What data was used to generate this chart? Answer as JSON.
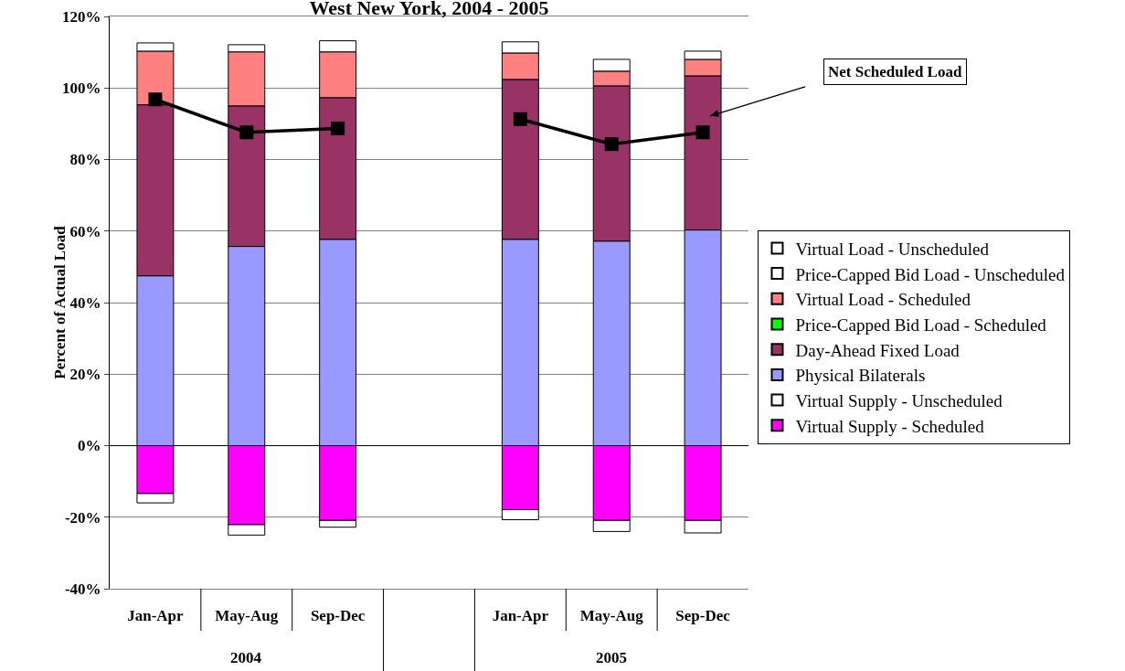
{
  "chart_data": {
    "type": "bar",
    "title": "West New York, 2004 - 2005",
    "ylabel": "Percent of Actual Load",
    "stacked": true,
    "categories": [
      "Jan-Apr",
      "May-Aug",
      "Sep-Dec",
      null,
      "Jan-Apr",
      "May-Aug",
      "Sep-Dec"
    ],
    "annotations": [
      "2004",
      "2005"
    ],
    "series": [
      {
        "name": "Virtual Supply - Scheduled",
        "color": "#ff00ff",
        "values": [
          -13.4,
          -22.1,
          -20.9,
          null,
          -17.9,
          -20.9,
          -20.9
        ]
      },
      {
        "name": "Virtual Supply - Unscheduled",
        "color": "#ffffff",
        "values": [
          -2.6,
          -2.9,
          -1.9,
          null,
          -2.8,
          -3.1,
          -3.5
        ]
      },
      {
        "name": "Physical Bilaterals",
        "color": "#9999ff",
        "values": [
          47.5,
          55.7,
          57.7,
          null,
          57.7,
          57.2,
          60.3
        ]
      },
      {
        "name": "Day-Ahead Fixed Load",
        "color": "#993366",
        "values": [
          47.8,
          39.3,
          39.6,
          null,
          44.7,
          43.4,
          43.1
        ]
      },
      {
        "name": "Price-Capped Bid Load - Scheduled",
        "color": "#00ff00",
        "values": [
          0,
          0,
          0,
          null,
          0,
          0,
          0
        ]
      },
      {
        "name": "Virtual Load - Scheduled",
        "color": "#ff8080",
        "values": [
          15.0,
          15.1,
          12.8,
          null,
          7.4,
          4.1,
          4.6
        ]
      },
      {
        "name": "Price-Capped Bid Load - Unscheduled",
        "color": "#ffffff",
        "values": [
          0,
          0,
          0,
          null,
          0,
          0,
          0
        ]
      },
      {
        "name": "Virtual Load - Unscheduled",
        "color": "#ffffff",
        "values": [
          2.3,
          2.0,
          3.1,
          null,
          3.1,
          3.3,
          2.3
        ]
      },
      {
        "name": "Net Scheduled Load",
        "type": "line",
        "color": "#000000",
        "marker": "square",
        "line_style": "solid",
        "values": [
          96.8,
          87.6,
          88.7,
          null,
          91.3,
          84.3,
          87.6
        ]
      }
    ],
    "ylim": [
      -40,
      120
    ],
    "yticks": [
      {
        "value": -40,
        "label": "-40%"
      },
      {
        "value": -20,
        "label": "-20%"
      },
      {
        "value": 0,
        "label": "0%"
      },
      {
        "value": 20,
        "label": "20%"
      },
      {
        "value": 40,
        "label": "40%"
      },
      {
        "value": 60,
        "label": "60%"
      },
      {
        "value": 80,
        "label": "80%"
      },
      {
        "value": 100,
        "label": "100%"
      },
      {
        "value": 120,
        "label": "120%"
      }
    ],
    "grid": "y",
    "legend": "right"
  }
}
